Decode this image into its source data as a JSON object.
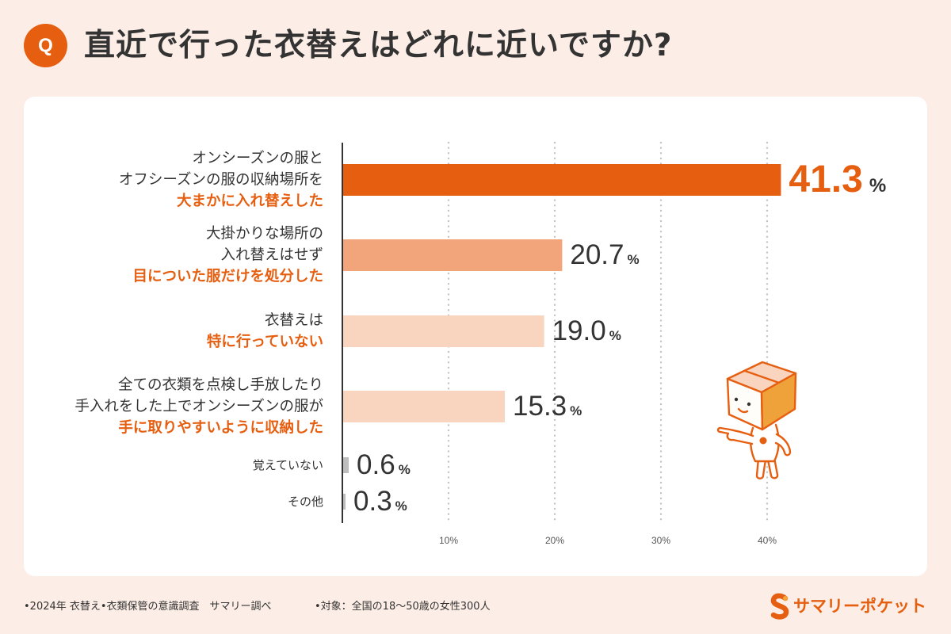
{
  "colors": {
    "background": "#FCEEE6",
    "card": "#FFFFFF",
    "accent": "#E65F11",
    "text": "#333333",
    "grid": "#C4C4C4",
    "mascot_side": "#F0A23A",
    "mascot_top": "#F9D4BE"
  },
  "header": {
    "q_badge": "Q"
  },
  "chart_data": {
    "type": "bar",
    "orientation": "horizontal",
    "title": "直近で行った衣替えはどれに近いですか?",
    "categories": [
      {
        "lines": [
          "オンシーズンの服と",
          "オフシーズンの服の収納場所を"
        ],
        "emphasis": [
          "大まかに入れ替えした"
        ]
      },
      {
        "lines": [
          "大掛かりな場所の",
          "入れ替えはせず"
        ],
        "emphasis": [
          "目についた服だけを処分した"
        ]
      },
      {
        "lines": [
          "衣替えは"
        ],
        "emphasis": [
          "特に行っていない"
        ]
      },
      {
        "lines": [
          "全ての衣類を点検し手放したり",
          "手入れをした上でオンシーズンの服が"
        ],
        "emphasis": [
          "手に取りやすいように収納した"
        ]
      },
      {
        "lines": [
          "覚えていない"
        ],
        "emphasis": []
      },
      {
        "lines": [
          "その他"
        ],
        "emphasis": []
      }
    ],
    "values": [
      41.3,
      20.7,
      19.0,
      15.3,
      0.6,
      0.3
    ],
    "value_labels": [
      "41.3",
      "20.7",
      "19.0",
      "15.3",
      "0.6",
      "0.3"
    ],
    "unit": "%",
    "bar_colors": [
      "#E65F11",
      "#F2A47A",
      "#F9D4BE",
      "#F9D4BE",
      "#BDBDBD",
      "#BDBDBD"
    ],
    "xticks": [
      10,
      20,
      30,
      40
    ],
    "xtick_labels": [
      "10%",
      "20%",
      "30%",
      "40%"
    ],
    "xlim": [
      0,
      50
    ],
    "grid": true,
    "xlabel": "",
    "ylabel": ""
  },
  "footer": {
    "survey": "•2024年 衣替え•衣類保管の意識調査　サマリー調べ",
    "target": "•対象：全国の18〜50歳の女性300人"
  },
  "logo": {
    "text": "サマリーポケット"
  }
}
